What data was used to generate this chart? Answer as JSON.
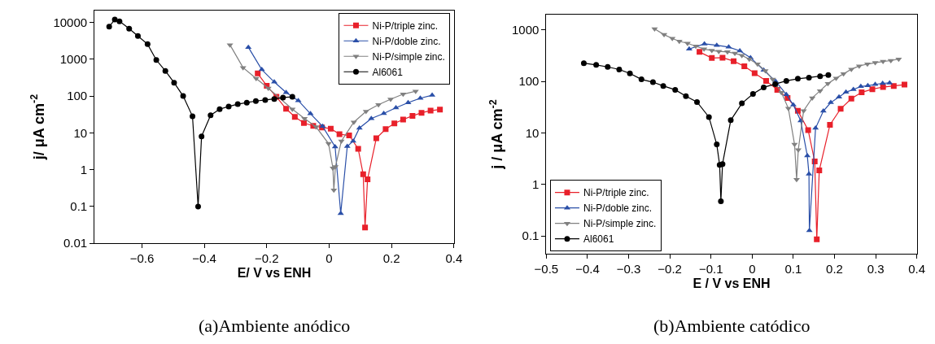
{
  "chart_data": [
    {
      "type": "line",
      "title": "(a)Ambiente anódico",
      "xlabel": "E/ V vs ENH",
      "ylabel": "j/ μA cm$^{-2}$",
      "log": "y",
      "legend": "top right",
      "xlim": [
        -0.752,
        0.4
      ],
      "xticks": [
        -0.6,
        -0.4,
        -0.2,
        0,
        0.2,
        0.4
      ],
      "ylim": [
        0.01,
        21000
      ],
      "yticks": [
        0.01,
        0.1,
        1,
        10,
        100,
        1000,
        10000
      ],
      "series": [
        {
          "name": "Ni-P/triple zinc.",
          "color": "#e8202a",
          "marker": "square",
          "x": [
            -0.229,
            -0.2,
            -0.169,
            -0.138,
            -0.11,
            -0.081,
            -0.051,
            -0.023,
            0.005,
            0.033,
            0.064,
            0.093,
            0.109,
            0.115,
            0.123,
            0.151,
            0.181,
            0.209,
            0.237,
            0.267,
            0.296,
            0.325,
            0.355
          ],
          "values": [
            410,
            190,
            95,
            45,
            27,
            18.5,
            15.5,
            14,
            13,
            9.2,
            8.5,
            3.7,
            0.75,
            0.027,
            0.55,
            7.1,
            12.6,
            18,
            23,
            29,
            35,
            40,
            43
          ]
        },
        {
          "name": "Ni-P/doble zinc.",
          "color": "#2a4fa8",
          "marker": "triangle",
          "x": [
            -0.259,
            -0.216,
            -0.176,
            -0.138,
            -0.099,
            -0.06,
            -0.021,
            0.019,
            0.037,
            0.058,
            0.077,
            0.097,
            0.135,
            0.175,
            0.214,
            0.253,
            0.292,
            0.33
          ],
          "values": [
            2100,
            520,
            240,
            125,
            75,
            33,
            15,
            4.2,
            0.065,
            4.3,
            6,
            13.5,
            24.5,
            33.5,
            48,
            66,
            87,
            105
          ]
        },
        {
          "name": "Ni-P/simple zinc.",
          "color": "#808080",
          "marker": "triangle-down",
          "x": [
            -0.318,
            -0.276,
            -0.234,
            -0.195,
            -0.118,
            -0.079,
            -0.042,
            -0.002,
            0.012,
            0.015,
            0.02,
            0.039,
            0.079,
            0.118,
            0.158,
            0.197,
            0.237,
            0.277
          ],
          "values": [
            2450,
            590,
            300,
            162,
            44,
            24.5,
            14.5,
            5.1,
            1.1,
            0.28,
            1.2,
            6,
            19.5,
            38,
            58,
            82,
            112,
            135
          ]
        },
        {
          "name": "Al6061",
          "color": "#000000",
          "marker": "circle",
          "x": [
            -0.705,
            -0.687,
            -0.672,
            -0.641,
            -0.613,
            -0.582,
            -0.554,
            -0.525,
            -0.497,
            -0.468,
            -0.438,
            -0.42,
            -0.409,
            -0.38,
            -0.351,
            -0.322,
            -0.293,
            -0.264,
            -0.235,
            -0.205,
            -0.176,
            -0.148,
            -0.118
          ],
          "values": [
            7600,
            12000,
            10700,
            6700,
            4250,
            2550,
            950,
            480,
            230,
            100,
            28,
            0.1,
            8,
            30,
            44,
            52,
            60,
            66,
            73,
            78,
            83,
            91,
            95
          ]
        }
      ]
    },
    {
      "type": "line",
      "title": "(b)Ambiente catódico",
      "xlabel": "E / V vs ENH",
      "ylabel": "j / μA cm$^{-2}$",
      "log": "y",
      "legend": "bottom left",
      "xlim": [
        -0.5,
        0.4
      ],
      "xticks": [
        -0.5,
        -0.4,
        -0.3,
        -0.2,
        -0.1,
        0,
        0.1,
        0.2,
        0.3,
        0.4
      ],
      "ylim": [
        0.045,
        2000
      ],
      "yticks": [
        0.1,
        1,
        10,
        100,
        1000
      ],
      "series": [
        {
          "name": "Ni-P/triple zinc.",
          "color": "#e8202a",
          "marker": "square",
          "x": [
            -0.128,
            -0.098,
            -0.072,
            -0.045,
            -0.019,
            0.006,
            0.034,
            0.061,
            0.086,
            0.111,
            0.136,
            0.152,
            0.157,
            0.163,
            0.189,
            0.215,
            0.241,
            0.266,
            0.292,
            0.318,
            0.344,
            0.37
          ],
          "values": [
            375,
            286,
            290,
            249,
            197,
            145,
            103,
            69,
            48,
            27,
            11.4,
            2.8,
            0.086,
            1.87,
            14.4,
            29.5,
            46.5,
            61.5,
            71,
            78,
            82,
            87
          ]
        },
        {
          "name": "Ni-P/doble zinc.",
          "color": "#2a4fa8",
          "marker": "triangle",
          "x": [
            -0.153,
            -0.116,
            -0.086,
            -0.057,
            -0.03,
            -0.004,
            0.028,
            0.057,
            0.083,
            0.1,
            0.118,
            0.134,
            0.138,
            0.139,
            0.154,
            0.173,
            0.191,
            0.211,
            0.228,
            0.246,
            0.264,
            0.281,
            0.299,
            0.317,
            0.334
          ],
          "values": [
            427,
            538,
            505,
            467,
            395,
            290,
            166,
            101,
            56,
            35,
            17.3,
            3.6,
            1.6,
            0.127,
            12.4,
            26.6,
            39,
            50,
            62,
            70,
            80,
            83,
            88,
            92,
            94
          ]
        },
        {
          "name": "Ni-P/simple zinc.",
          "color": "#808080",
          "marker": "triangle-down",
          "x": [
            -0.237,
            -0.214,
            -0.194,
            -0.177,
            -0.157,
            -0.137,
            -0.117,
            -0.098,
            -0.081,
            -0.06,
            -0.042,
            -0.025,
            -0.007,
            0.013,
            0.032,
            0.05,
            0.071,
            0.088,
            0.103,
            0.108,
            0.112,
            0.125,
            0.146,
            0.165,
            0.184,
            0.204,
            0.222,
            0.241,
            0.26,
            0.28,
            0.299,
            0.318,
            0.337,
            0.356
          ],
          "values": [
            1050,
            813,
            688,
            605,
            552,
            486,
            427,
            400,
            385,
            375,
            352,
            321,
            272,
            218,
            162,
            110,
            61,
            30,
            6,
            1.25,
            4.7,
            27,
            48,
            66,
            91,
            116,
            141,
            173,
            200,
            218,
            232,
            245,
            255,
            272
          ]
        },
        {
          "name": "Al6061",
          "color": "#000000",
          "marker": "circle",
          "x": [
            -0.409,
            -0.379,
            -0.351,
            -0.323,
            -0.297,
            -0.269,
            -0.241,
            -0.216,
            -0.187,
            -0.161,
            -0.134,
            -0.105,
            -0.086,
            -0.079,
            -0.076,
            -0.072,
            -0.052,
            -0.025,
            0.002,
            0.028,
            0.056,
            0.083,
            0.111,
            0.138,
            0.165,
            0.185
          ],
          "values": [
            227,
            210,
            192,
            171,
            144,
            110,
            97,
            82,
            69,
            52,
            40,
            20.4,
            6,
            2.4,
            0.47,
            2.5,
            17.7,
            37.6,
            57.5,
            77,
            89,
            103,
            113,
            119,
            127,
            134
          ]
        }
      ]
    }
  ]
}
